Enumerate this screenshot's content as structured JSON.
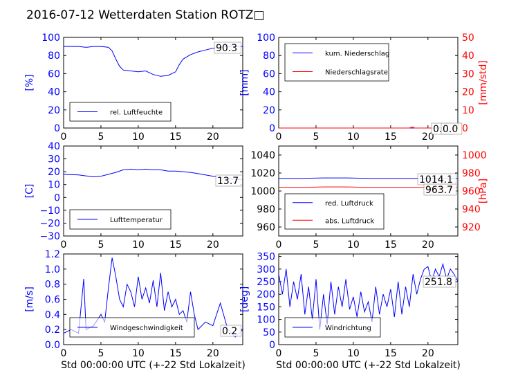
{
  "title": "2016-07-12 Wetterdaten Station ROTZ□",
  "colors": {
    "blue": "#0000ff",
    "red": "#ff0000",
    "axis": "#000000"
  },
  "chart_data": [
    {
      "type": "line",
      "id": "humidity",
      "ylabel": "[%]",
      "ylim": [
        0,
        100
      ],
      "yticks": [
        0,
        20,
        40,
        60,
        80,
        100
      ],
      "xlim": [
        0,
        24
      ],
      "xticks": [
        0,
        5,
        10,
        15,
        20
      ],
      "legend_placement": "lower-left",
      "series": [
        {
          "name": "rel. Luftfeuchte",
          "color": "#0000ff",
          "x": [
            0,
            1,
            2,
            3,
            4,
            5,
            6,
            6.5,
            7,
            7.5,
            8,
            9,
            10,
            11,
            12,
            13,
            14,
            15,
            15.5,
            16,
            17,
            18,
            19,
            20,
            21,
            22,
            23,
            24
          ],
          "y": [
            90,
            90,
            90,
            89,
            90,
            90,
            89,
            85,
            76,
            68,
            64,
            63,
            62,
            63,
            59,
            57,
            58,
            62,
            70,
            76,
            81,
            84,
            86,
            88,
            89,
            90,
            90,
            90
          ]
        }
      ],
      "last_value_label": "90.3"
    },
    {
      "type": "line",
      "id": "precip",
      "ylabel": "[mm]",
      "ylim": [
        0,
        100
      ],
      "yticks": [
        0,
        20,
        40,
        60,
        80,
        100
      ],
      "ylabel_right": "[mm/std]",
      "ylim_right": [
        0,
        50
      ],
      "yticks_right": [
        0,
        10,
        20,
        30,
        40,
        50
      ],
      "xlim": [
        0,
        24
      ],
      "xticks": [
        0,
        5,
        10,
        15,
        20
      ],
      "legend_placement": "upper-left",
      "series": [
        {
          "name": "kum. Niederschlag",
          "color": "#0000ff",
          "axis": "left",
          "x": [
            0,
            24
          ],
          "y": [
            0,
            0
          ]
        },
        {
          "name": "Niederschlagsrate",
          "color": "#ff0000",
          "axis": "right",
          "x": [
            0,
            17.5,
            17.8,
            18,
            18.2,
            24
          ],
          "y": [
            0,
            0,
            0.4,
            0.6,
            0,
            0
          ]
        }
      ],
      "last_value_labels": [
        "0.0",
        "0.0"
      ]
    },
    {
      "type": "line",
      "id": "temperature",
      "ylabel": "[C]",
      "ylim": [
        -30,
        40
      ],
      "yticks": [
        -30,
        -20,
        -10,
        0,
        10,
        20,
        30,
        40
      ],
      "xlim": [
        0,
        24
      ],
      "xticks": [
        0,
        5,
        10,
        15,
        20
      ],
      "legend_placement": "lower-left",
      "series": [
        {
          "name": "Lufttemperatur",
          "color": "#0000ff",
          "x": [
            0,
            2,
            4,
            5,
            6,
            7,
            8,
            9,
            10,
            11,
            12,
            13,
            14,
            15,
            16,
            17,
            18,
            19,
            20,
            21,
            22,
            23,
            24
          ],
          "y": [
            18,
            17.5,
            16,
            16.5,
            18,
            19.5,
            21.5,
            22,
            21.5,
            22,
            21.5,
            21.5,
            20.5,
            20.5,
            20,
            19.5,
            18.5,
            17.5,
            16.5,
            15.5,
            14.5,
            14,
            13.7
          ]
        }
      ],
      "last_value_label": "13.7"
    },
    {
      "type": "line",
      "id": "pressure",
      "ylim": [
        950,
        1050
      ],
      "yticks": [
        960,
        980,
        1000,
        1020,
        1040
      ],
      "ylabel_right": "[hPa]",
      "ylim_right": [
        910,
        1010
      ],
      "yticks_right": [
        920,
        940,
        960,
        980,
        1000
      ],
      "xlim": [
        0,
        24
      ],
      "xticks": [
        0,
        5,
        10,
        15,
        20
      ],
      "legend_placement": "lower-left",
      "series": [
        {
          "name": "red. Luftdruck",
          "color": "#0000ff",
          "axis": "left",
          "x": [
            0,
            3,
            6,
            9,
            12,
            15,
            18,
            21,
            24
          ],
          "y": [
            1014,
            1014,
            1014.5,
            1014.5,
            1014,
            1014,
            1014,
            1014,
            1014.1
          ]
        },
        {
          "name": "abs. Luftdruck",
          "color": "#ff0000",
          "axis": "right",
          "x": [
            0,
            3,
            6,
            9,
            12,
            15,
            18,
            21,
            24
          ],
          "y": [
            964,
            964,
            964.5,
            964.5,
            964,
            964,
            964,
            963.8,
            963.7
          ]
        }
      ],
      "last_value_labels": [
        "1014.1",
        "963.7"
      ]
    },
    {
      "type": "line",
      "id": "windspeed",
      "ylabel": "[m/s]",
      "ylim": [
        0,
        1.2
      ],
      "yticks": [
        0.0,
        0.2,
        0.4,
        0.6,
        0.8,
        1.0,
        1.2
      ],
      "xlim": [
        0,
        24
      ],
      "xticks": [
        0,
        5,
        10,
        15,
        20
      ],
      "xlabel": "Std 00:00:00 UTC (+-22 Std Lokalzeit)",
      "legend_placement": "lower-left",
      "series": [
        {
          "name": "Windgeschwindigkeit",
          "color": "#0000ff",
          "x": [
            0,
            1,
            2,
            2.7,
            3,
            4,
            5,
            5.5,
            6,
            6.5,
            7,
            7.5,
            8,
            8.5,
            9,
            9.5,
            10,
            10.5,
            11,
            11.5,
            12,
            12.5,
            13,
            13.5,
            14,
            14.5,
            15,
            15.5,
            16,
            16.5,
            17,
            17.5,
            18,
            19,
            20,
            21,
            22,
            23,
            24
          ],
          "y": [
            0.15,
            0.2,
            0.15,
            0.87,
            0.2,
            0.25,
            0.4,
            0.3,
            0.75,
            1.15,
            0.9,
            0.6,
            0.5,
            0.8,
            0.7,
            0.5,
            0.9,
            0.6,
            0.75,
            0.55,
            0.85,
            0.5,
            0.95,
            0.45,
            0.7,
            0.5,
            0.6,
            0.4,
            0.45,
            0.3,
            0.7,
            0.4,
            0.2,
            0.3,
            0.25,
            0.55,
            0.2,
            0.1,
            0.2
          ]
        }
      ],
      "last_value_label": "0.2"
    },
    {
      "type": "line",
      "id": "winddir",
      "ylabel": "[deg]",
      "ylim": [
        0,
        360
      ],
      "yticks": [
        0,
        50,
        100,
        150,
        200,
        250,
        300,
        350
      ],
      "xlim": [
        0,
        24
      ],
      "xticks": [
        0,
        5,
        10,
        15,
        20
      ],
      "xlabel": "Std 00:00:00 UTC (+-22 Std Lokalzeit)",
      "legend_placement": "lower-left",
      "series": [
        {
          "name": "Windrichtung",
          "color": "#0000ff",
          "x": [
            0,
            0.5,
            1,
            1.5,
            2,
            2.5,
            3,
            3.5,
            4,
            4.5,
            5,
            5.5,
            6,
            6.5,
            7,
            7.5,
            8,
            8.5,
            9,
            9.5,
            10,
            10.5,
            11,
            11.5,
            12,
            12.5,
            13,
            13.5,
            14,
            14.5,
            15,
            15.5,
            16,
            16.5,
            17,
            17.5,
            18,
            18.5,
            19,
            19.5,
            20,
            20.5,
            21,
            21.5,
            22,
            22.5,
            23,
            23.5,
            24
          ],
          "y": [
            280,
            200,
            300,
            150,
            250,
            180,
            280,
            120,
            230,
            100,
            260,
            60,
            200,
            80,
            250,
            120,
            230,
            150,
            260,
            140,
            190,
            110,
            210,
            130,
            170,
            90,
            230,
            120,
            200,
            150,
            220,
            110,
            250,
            120,
            230,
            150,
            280,
            200,
            260,
            300,
            310,
            250,
            300,
            270,
            320,
            260,
            300,
            280,
            252
          ]
        }
      ],
      "last_value_label": "251.8"
    }
  ]
}
